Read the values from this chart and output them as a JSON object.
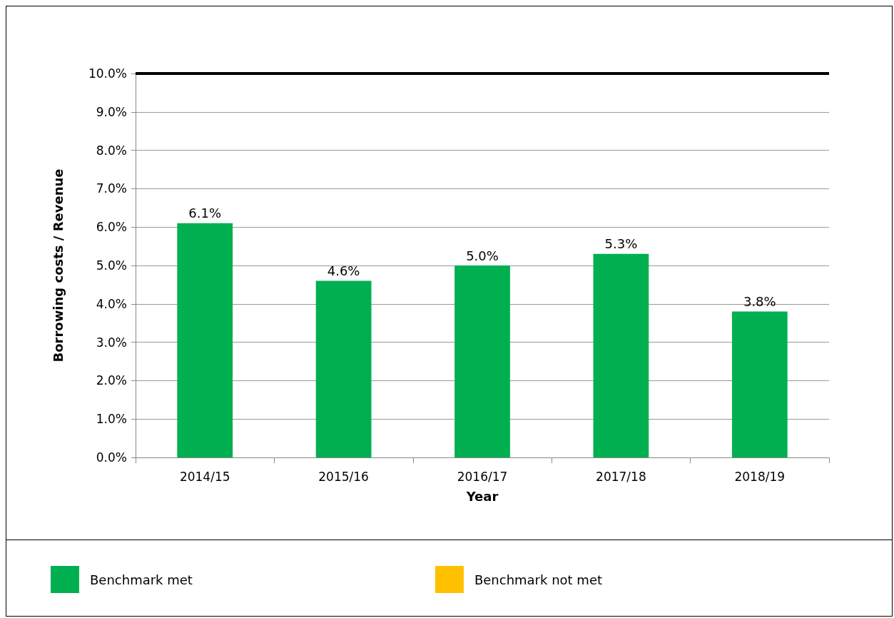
{
  "chart_data": {
    "type": "bar",
    "xlabel": "Year",
    "ylabel": "Borrowing costs / Revenue",
    "categories": [
      "2014/15",
      "2015/16",
      "2016/17",
      "2017/18",
      "2018/19"
    ],
    "series": [
      {
        "name": "Benchmark met",
        "color": "#00b050",
        "values": [
          6.1,
          4.6,
          5.0,
          5.3,
          3.8
        ],
        "value_labels": [
          "6.1%",
          "4.6%",
          "5.0%",
          "5.3%",
          "3.8%"
        ]
      },
      {
        "name": "Benchmark not met",
        "color": "#ffc000",
        "values": [
          null,
          null,
          null,
          null,
          null
        ]
      }
    ],
    "ylim": [
      0,
      10
    ],
    "yticks": [
      {
        "value": 0,
        "label": "0.0%"
      },
      {
        "value": 1,
        "label": "1.0%"
      },
      {
        "value": 2,
        "label": "2.0%"
      },
      {
        "value": 3,
        "label": "3.0%"
      },
      {
        "value": 4,
        "label": "4.0%"
      },
      {
        "value": 5,
        "label": "5.0%"
      },
      {
        "value": 6,
        "label": "6.0%"
      },
      {
        "value": 7,
        "label": "7.0%"
      },
      {
        "value": 8,
        "label": "8.0%"
      },
      {
        "value": 9,
        "label": "9.0%"
      },
      {
        "value": 10,
        "label": "10.0%"
      }
    ],
    "ref_lines": [
      {
        "axis": "y",
        "value": 10,
        "color": "#000000"
      }
    ],
    "grid": "y",
    "legend": "bottom"
  }
}
